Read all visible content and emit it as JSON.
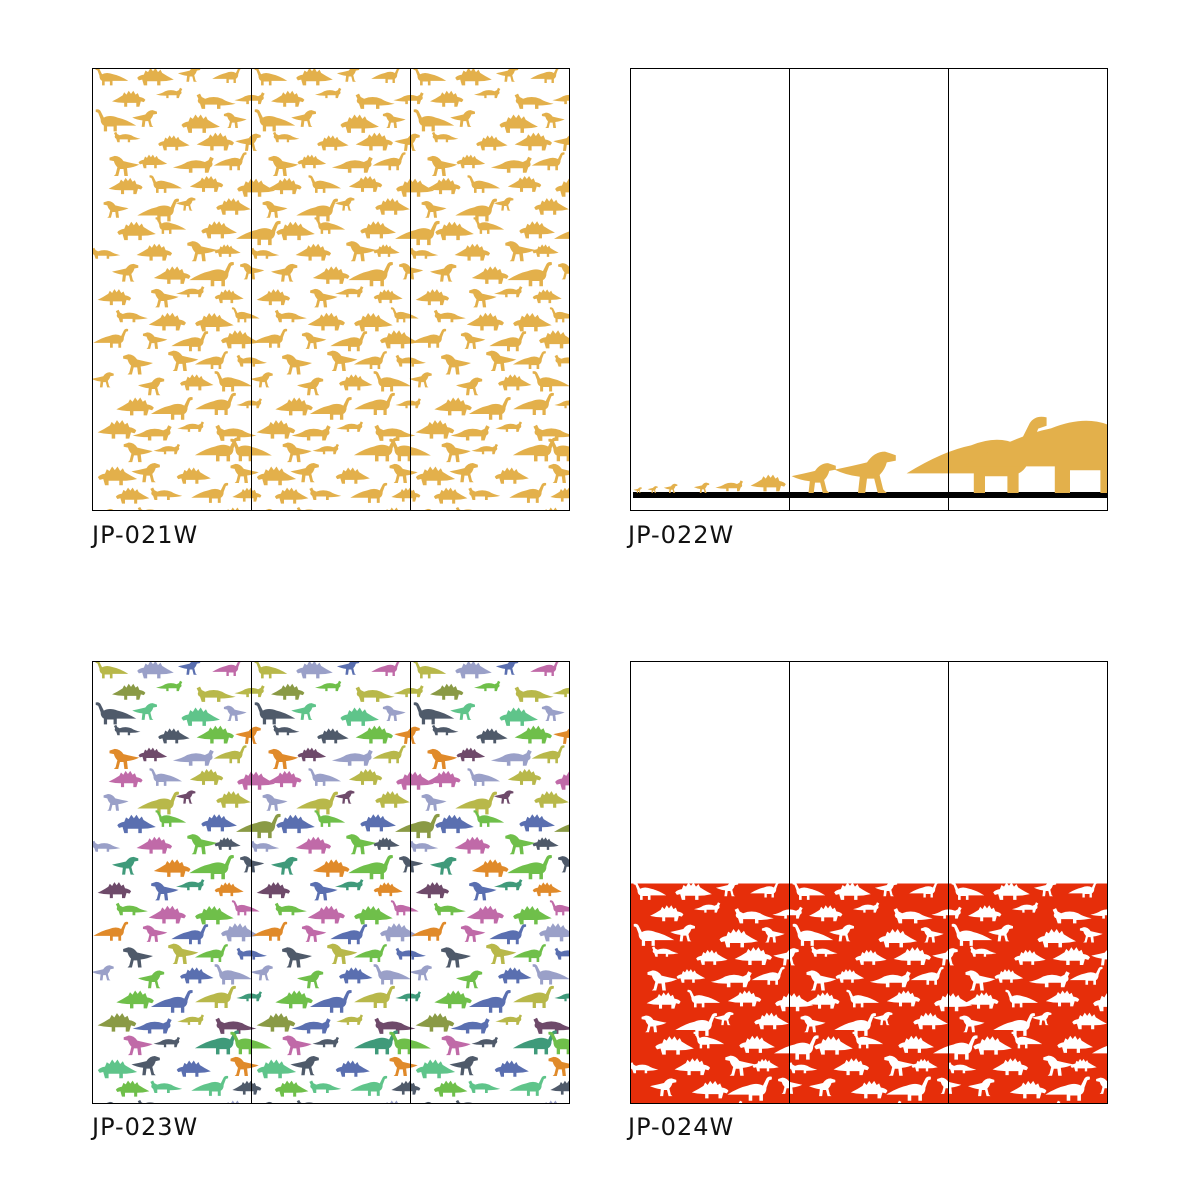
{
  "products": [
    {
      "code": "JP-021W",
      "design": "dinosaur-pattern-allover",
      "colors": [
        "#e3b04b"
      ],
      "background": "#ffffff"
    },
    {
      "code": "JP-022W",
      "design": "dinosaur-size-lineup",
      "colors": [
        "#e3b04b"
      ],
      "ground": "#000000",
      "background": "#ffffff"
    },
    {
      "code": "JP-023W",
      "design": "dinosaur-pattern-multicolor",
      "colors": [
        "#6fbf4a",
        "#5fc48a",
        "#6e4a6a",
        "#c06aa8",
        "#8a9a45",
        "#4f5a6a",
        "#5a6fb0",
        "#e08a2a",
        "#b8b84a",
        "#9aa0c8",
        "#3f9a7a"
      ],
      "background": "#ffffff"
    },
    {
      "code": "JP-024W",
      "design": "dinosaur-pattern-band",
      "colors": [
        "#ffffff"
      ],
      "background": "#e62e0a",
      "band_fraction": 0.5
    }
  ]
}
